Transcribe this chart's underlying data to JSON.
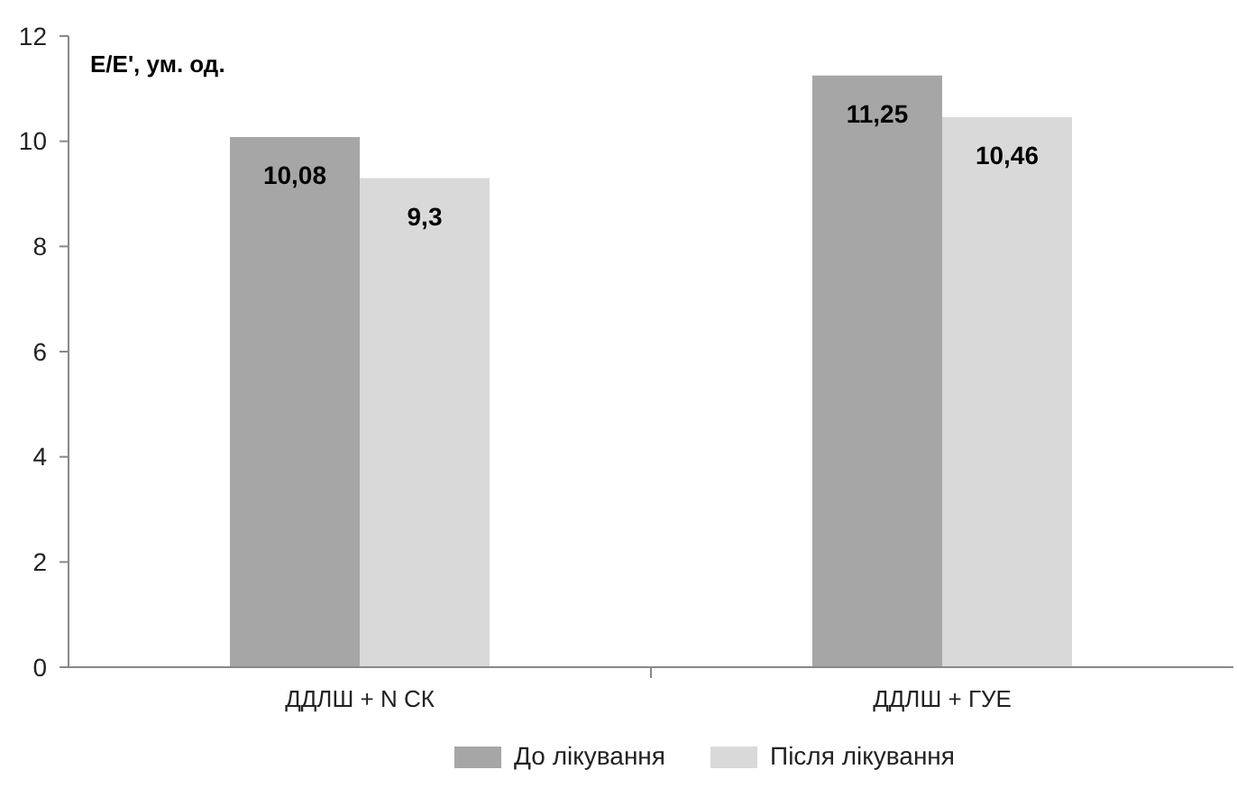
{
  "chart_data": {
    "type": "bar",
    "ylabel": "E/E', ум. од.",
    "categories": [
      "ДДЛШ + N СК",
      "ДДЛШ + ГУЕ"
    ],
    "series": [
      {
        "name": "До лікування",
        "color": "#a6a6a6",
        "values": [
          10.08,
          11.25
        ],
        "value_labels": [
          "10,08",
          "11,25"
        ]
      },
      {
        "name": "Після лікування",
        "color": "#d9d9d9",
        "values": [
          9.3,
          10.46
        ],
        "value_labels": [
          "9,3",
          "10,46"
        ]
      }
    ],
    "ylim": [
      0,
      12
    ],
    "yticks": [
      0,
      2,
      4,
      6,
      8,
      10,
      12
    ],
    "grid": false,
    "legend": "bottom"
  }
}
